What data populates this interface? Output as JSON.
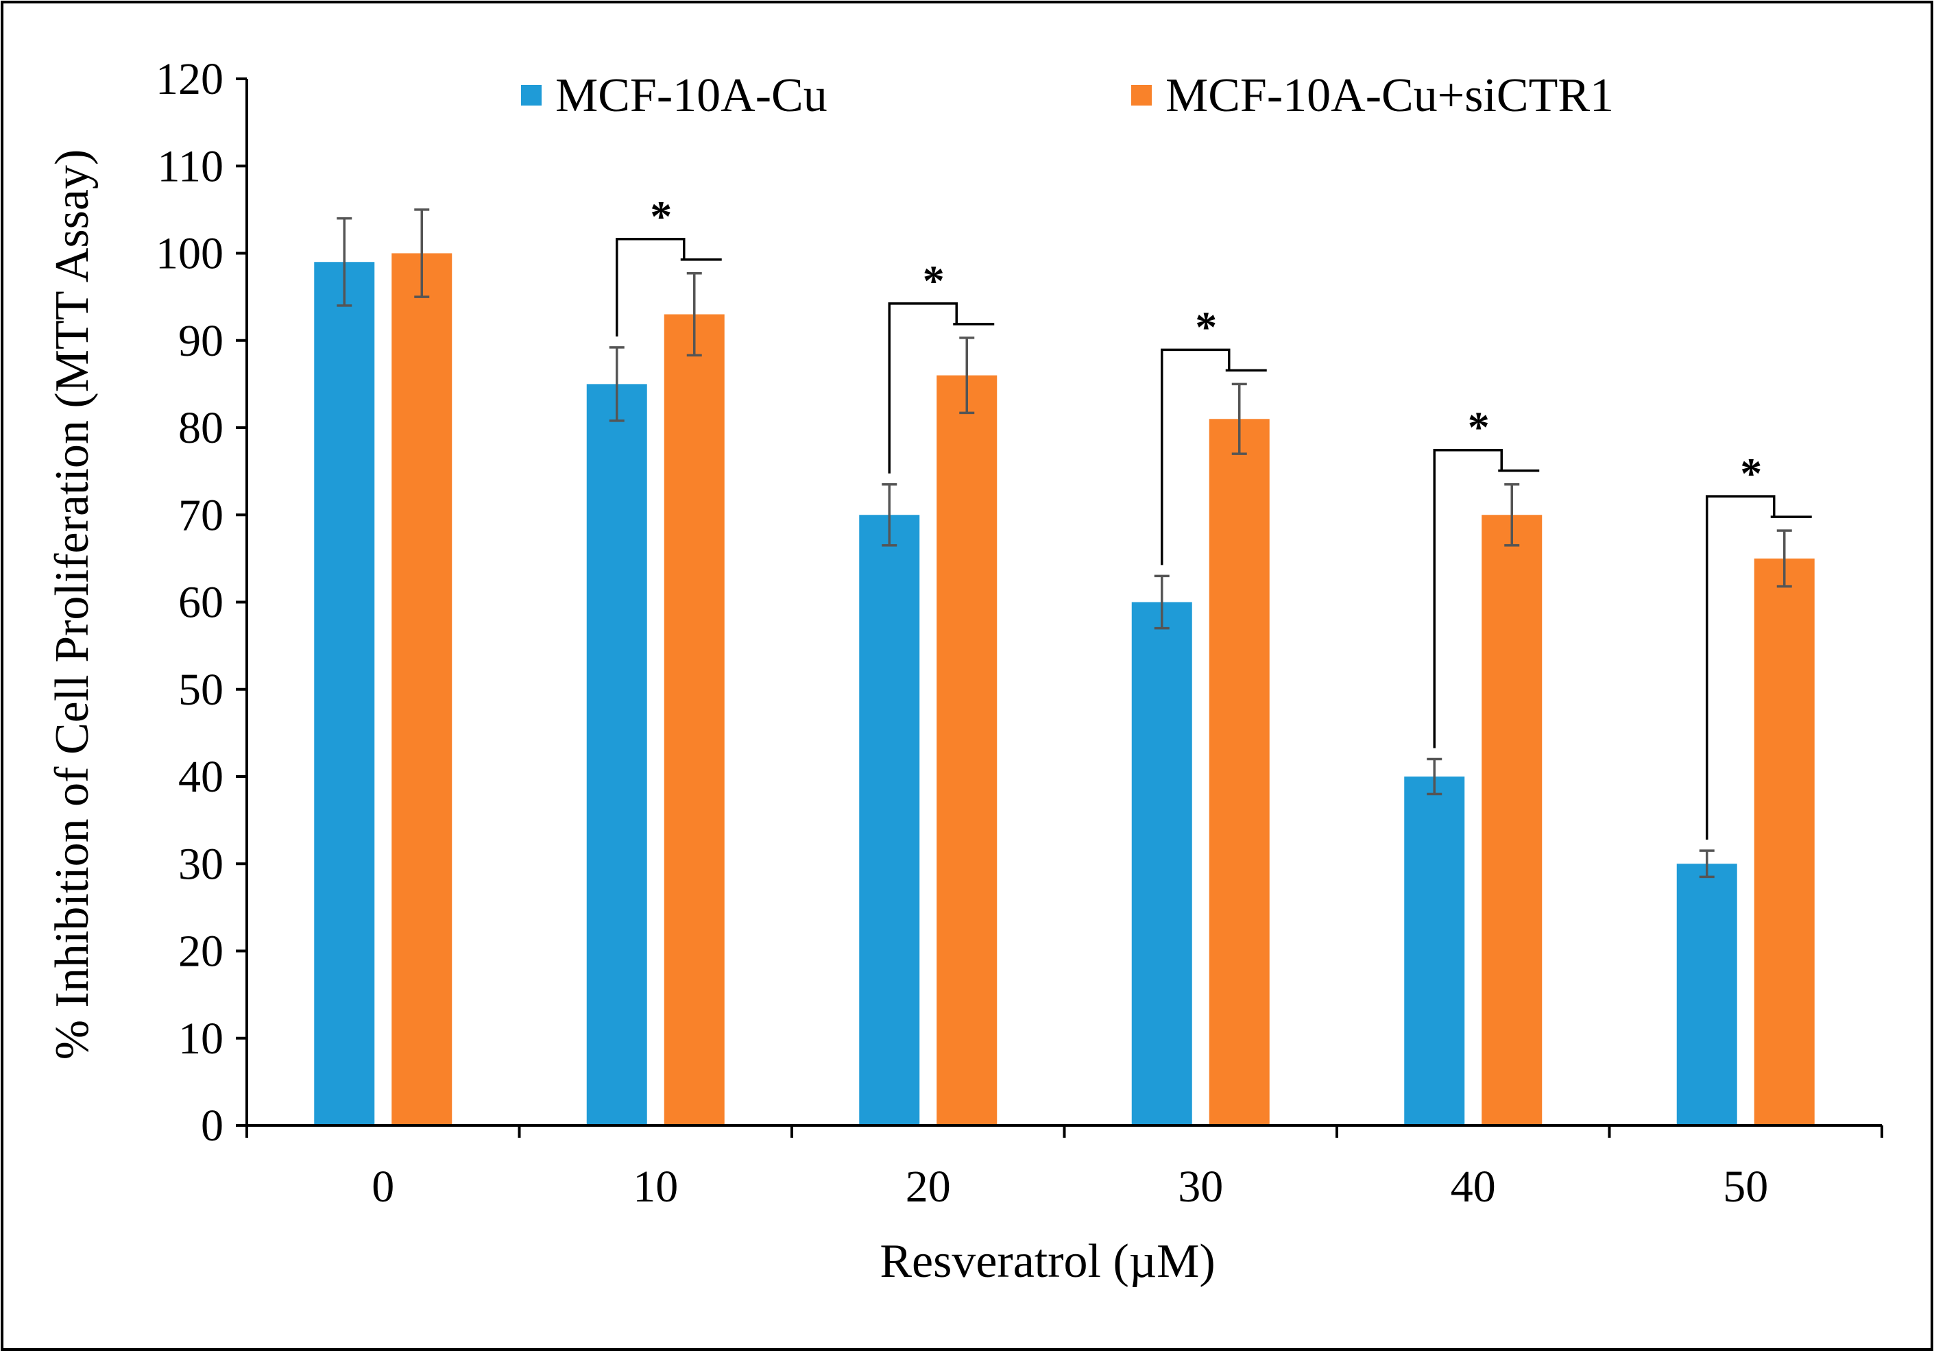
{
  "chart_data": {
    "type": "bar",
    "title": "",
    "xlabel": "Resveratrol (µM)",
    "ylabel": "% Inhibition of Cell Proliferation (MTT Assay)",
    "categories": [
      "0",
      "10",
      "20",
      "30",
      "40",
      "50"
    ],
    "ylim": [
      0,
      120
    ],
    "yticks": [
      "0",
      "10",
      "20",
      "30",
      "40",
      "50",
      "60",
      "70",
      "80",
      "90",
      "100",
      "110",
      "120"
    ],
    "grid": false,
    "legend_position": "top",
    "series": [
      {
        "name": "MCF-10A-Cu",
        "color": "#1f9bd7",
        "values": [
          99,
          85,
          70,
          60,
          40,
          30
        ],
        "errors": [
          5,
          4.2,
          3.5,
          3,
          2,
          1.5
        ]
      },
      {
        "name": "MCF-10A-Cu+siCTR1",
        "color": "#f9822a",
        "values": [
          100,
          93,
          86,
          81,
          70,
          65
        ],
        "errors": [
          5,
          4.7,
          4.3,
          4,
          3.5,
          3.2
        ]
      }
    ],
    "significance": [
      {
        "category": "10",
        "label": "*"
      },
      {
        "category": "20",
        "label": "*"
      },
      {
        "category": "30",
        "label": "*"
      },
      {
        "category": "40",
        "label": "*"
      },
      {
        "category": "50",
        "label": "*"
      }
    ]
  }
}
